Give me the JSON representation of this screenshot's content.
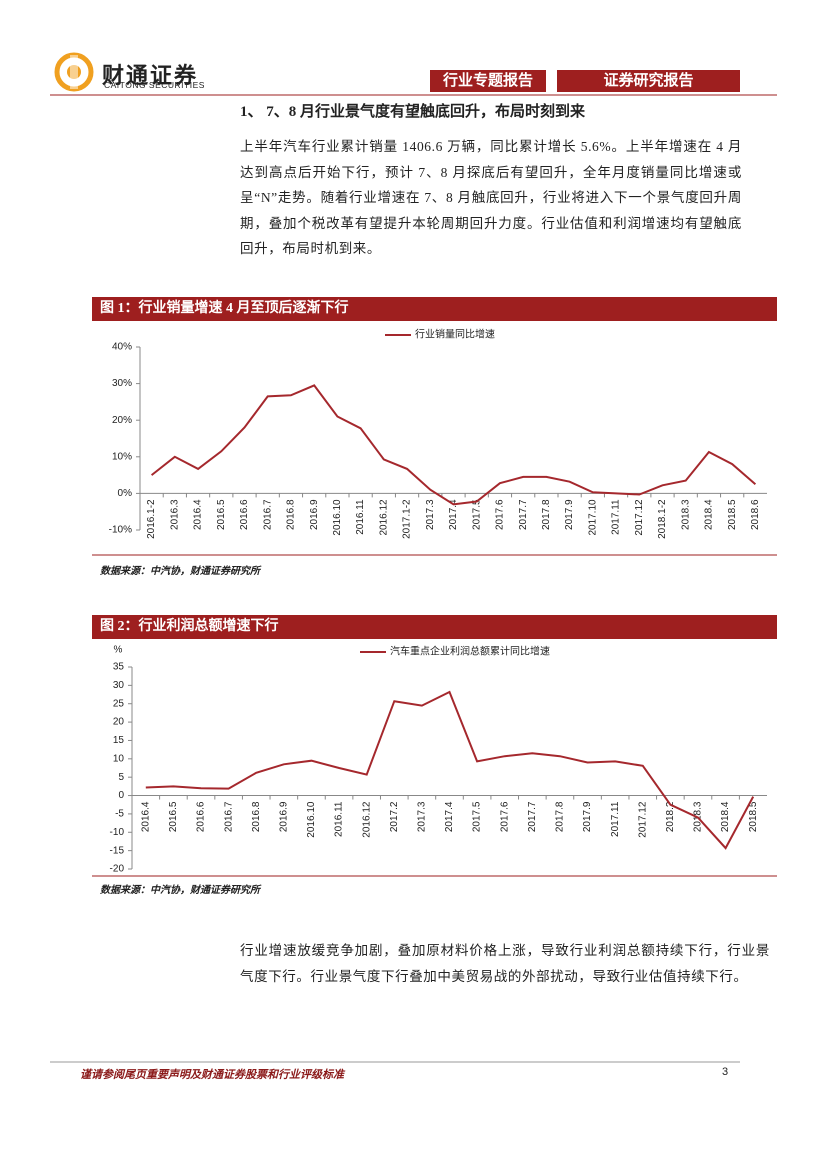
{
  "header": {
    "logo": "财通证券",
    "logo_en": "CAITONG SECURITIES",
    "tab_left": "行业专题报告",
    "tab_right": "证券研究报告"
  },
  "section_title": "1、 7、8 月行业景气度有望触底回升，布局时刻到来",
  "paragraphs": [
    "上半年汽车行业累计销量 1406.6 万辆，同比累计增长 5.6%。上半年增速在 4 月达到高点后开始下行，预计 7、8 月探底后有望回升，全年月度销量同比增速或呈“N”走势。随着行业增速在 7、8 月触底回升，行业将进入下一个景气度回升周期，叠加个税改革有望提升本轮周期回升力度。行业估值和利润增速均有望触底回升，布局时机到来。",
    "行业增速放缓竞争加剧，叠加原材料价格上涨，导致行业利润总额持续下行，行业景气度下行。行业景气度下行叠加中美贸易战的外部扰动，导致行业估值持续下行。"
  ],
  "chart_data": [
    {
      "type": "line",
      "title": "图 1：行业销量增速 4 月至顶后逐渐下行",
      "source": "数据来源：中汽协，财通证券研究所",
      "categories": [
        "2016.1-2",
        "2016.3",
        "2016.4",
        "2016.5",
        "2016.6",
        "2016.7",
        "2016.8",
        "2016.9",
        "2016.10",
        "2016.11",
        "2016.12",
        "2017.1-2",
        "2017.3",
        "2017.4",
        "2017.5",
        "2017.6",
        "2017.7",
        "2017.8",
        "2017.9",
        "2017.10",
        "2017.11",
        "2017.12",
        "2018.1-2",
        "2018.3",
        "2018.4",
        "2018.5",
        "2018.6"
      ],
      "series": [
        {
          "name": "行业销量同比增速",
          "color": "#a5282d",
          "values": [
            5,
            10,
            6.7,
            11.5,
            18,
            26.5,
            26.8,
            29.5,
            21,
            17.8,
            9.3,
            6.7,
            1,
            -3,
            -2.2,
            2.8,
            4.5,
            4.5,
            3.2,
            0.3,
            0,
            -0.3,
            2.2,
            3.5,
            11.3,
            8,
            2.5
          ]
        }
      ],
      "ylim": [
        -10,
        40
      ],
      "yticks": [
        {
          "value": -10,
          "label": "-10%"
        },
        {
          "value": 0,
          "label": "0%"
        },
        {
          "value": 10,
          "label": "10%"
        },
        {
          "value": 20,
          "label": "20%"
        },
        {
          "value": 30,
          "label": "30%"
        },
        {
          "value": 40,
          "label": "40%"
        }
      ]
    },
    {
      "type": "line",
      "title": "图 2：行业利润总额增速下行",
      "source": "数据来源：中汽协，财通证券研究所",
      "y_label": "%",
      "categories": [
        "2016.4",
        "2016.5",
        "2016.6",
        "2016.7",
        "2016.8",
        "2016.9",
        "2016.10",
        "2016.11",
        "2016.12",
        "2017.2",
        "2017.3",
        "2017.4",
        "2017.5",
        "2017.6",
        "2017.7",
        "2017.8",
        "2017.9",
        "2017.11",
        "2017.12",
        "2018.2",
        "2018.3",
        "2018.4",
        "2018.5"
      ],
      "series": [
        {
          "name": "汽车重点企业利润总额累计同比增速",
          "color": "#a5282d",
          "values": [
            2.2,
            2.5,
            2,
            1.9,
            6.2,
            8.5,
            9.5,
            7.5,
            5.7,
            25.7,
            24.5,
            28.2,
            9.3,
            10.7,
            11.5,
            10.7,
            9,
            9.3,
            8.1,
            -2.5,
            -6,
            -14.3,
            -0.3
          ]
        }
      ],
      "ylim": [
        -20,
        35
      ],
      "yticks": [
        -20,
        -15,
        -10,
        -5,
        0,
        5,
        10,
        15,
        20,
        25,
        30,
        35
      ]
    }
  ],
  "footer": {
    "disclaimer": "谨请参阅尾页重要声明及财通证券股票和行业评级标准",
    "page": "3"
  }
}
